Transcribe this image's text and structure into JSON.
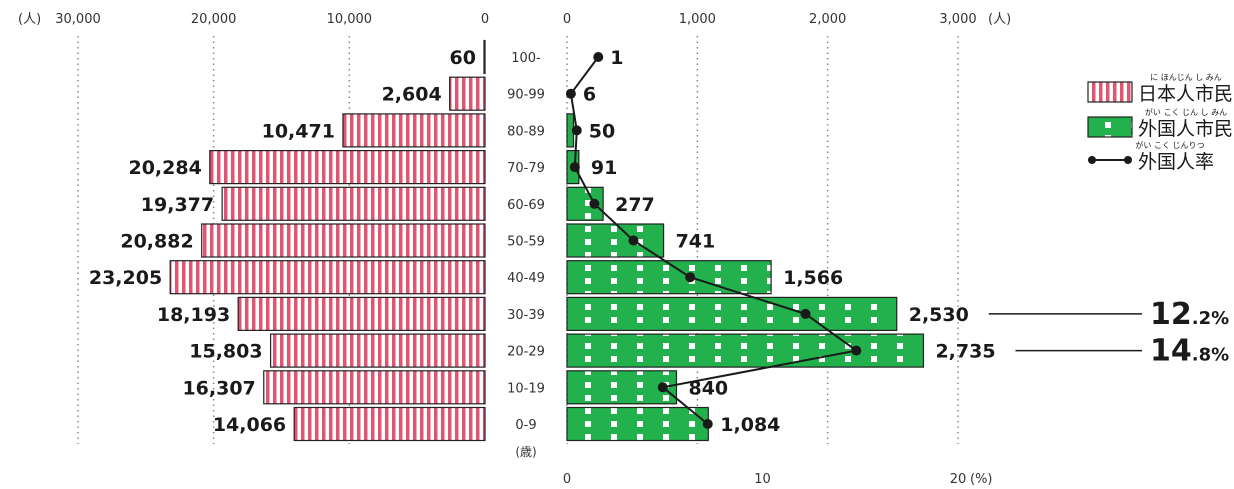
{
  "chart_data": {
    "type": "bar",
    "categories": [
      "100-",
      "90-99",
      "80-89",
      "70-79",
      "60-69",
      "50-59",
      "40-49",
      "30-39",
      "20-29",
      "10-19",
      "0-9"
    ],
    "age_unit": "(歳)",
    "left_axis": {
      "ticks": [
        "30,000",
        "20,000",
        "10,000",
        "0"
      ],
      "tick_values": [
        30000,
        20000,
        10000,
        0
      ],
      "unit": "(人)",
      "xlim": [
        0,
        30000
      ]
    },
    "right_axis": {
      "ticks": [
        "0",
        "1,000",
        "2,000",
        "3,000"
      ],
      "tick_values": [
        0,
        1000,
        2000,
        3000
      ],
      "unit": "(人)",
      "xlim": [
        0,
        3000
      ]
    },
    "rate_axis": {
      "ticks": [
        "0",
        "10",
        "20"
      ],
      "tick_values": [
        0,
        10,
        20
      ],
      "unit": "(%)",
      "xlim": [
        0,
        20
      ]
    },
    "series": [
      {
        "name": "日本人市民",
        "ruby": "に ほんじん し みん",
        "color": "#e05570",
        "values": [
          60,
          2604,
          10471,
          20284,
          19377,
          20882,
          23205,
          18193,
          15803,
          16307,
          14066
        ],
        "labels": [
          "60",
          "2,604",
          "10,471",
          "20,284",
          "19,377",
          "20,882",
          "23,205",
          "18,193",
          "15,803",
          "16,307",
          "14,066"
        ]
      },
      {
        "name": "外国人市民",
        "ruby": "がい こく じん し みん",
        "color": "#22b14c",
        "values": [
          1,
          6,
          50,
          91,
          277,
          741,
          1566,
          2530,
          2735,
          840,
          1084
        ],
        "labels": [
          "1",
          "6",
          "50",
          "91",
          "277",
          "741",
          "1,566",
          "2,530",
          "2,735",
          "840",
          "1,084"
        ]
      },
      {
        "name": "外国人率",
        "ruby": "がい こく じんりつ",
        "color": "#1a1a1a",
        "values": [
          1.6,
          0.2,
          0.5,
          0.4,
          1.4,
          3.4,
          6.3,
          12.2,
          14.8,
          4.9,
          7.2
        ]
      }
    ],
    "callouts": [
      {
        "category": "30-39",
        "big": "12",
        "small": ".2%"
      },
      {
        "category": "20-29",
        "big": "14",
        "small": ".8%"
      }
    ]
  }
}
